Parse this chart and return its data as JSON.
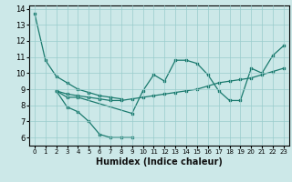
{
  "xlabel": "Humidex (Indice chaleur)",
  "xlim": [
    -0.5,
    23.5
  ],
  "ylim": [
    5.5,
    14.2
  ],
  "yticks": [
    6,
    7,
    8,
    9,
    10,
    11,
    12,
    13,
    14
  ],
  "xticks": [
    0,
    1,
    2,
    3,
    4,
    5,
    6,
    7,
    8,
    9,
    10,
    11,
    12,
    13,
    14,
    15,
    16,
    17,
    18,
    19,
    20,
    21,
    22,
    23
  ],
  "bg_color": "#cce8e8",
  "grid_color": "#99cccc",
  "line_color": "#1a7a6e",
  "line1_x": [
    0,
    1,
    2,
    3,
    4,
    5,
    6,
    7,
    8
  ],
  "line1_y": [
    13.7,
    10.8,
    9.8,
    9.4,
    9.0,
    8.8,
    8.6,
    8.5,
    8.4
  ],
  "line2_x": [
    2,
    3,
    4,
    5,
    6,
    7,
    8,
    9
  ],
  "line2_y": [
    8.9,
    7.9,
    7.6,
    7.0,
    6.2,
    6.0,
    6.0,
    6.0
  ],
  "line3_x": [
    2,
    3,
    4,
    5,
    6,
    7,
    8,
    9,
    10,
    11,
    12,
    13,
    14,
    15,
    16,
    17,
    18,
    19,
    20,
    21,
    22,
    23
  ],
  "line3_y": [
    8.9,
    8.7,
    8.6,
    8.5,
    8.4,
    8.3,
    8.3,
    8.4,
    8.5,
    8.6,
    8.7,
    8.8,
    8.9,
    9.0,
    9.2,
    9.4,
    9.5,
    9.6,
    9.7,
    9.9,
    10.1,
    10.3
  ],
  "line4_x": [
    2,
    3,
    4,
    9,
    10,
    11,
    12,
    13,
    14,
    15,
    16,
    17,
    18,
    19,
    20,
    21,
    22,
    23
  ],
  "line4_y": [
    8.9,
    8.5,
    8.5,
    7.5,
    8.9,
    9.9,
    9.5,
    10.8,
    10.8,
    10.6,
    9.9,
    8.9,
    8.3,
    8.3,
    10.3,
    10.0,
    11.1,
    11.7
  ]
}
